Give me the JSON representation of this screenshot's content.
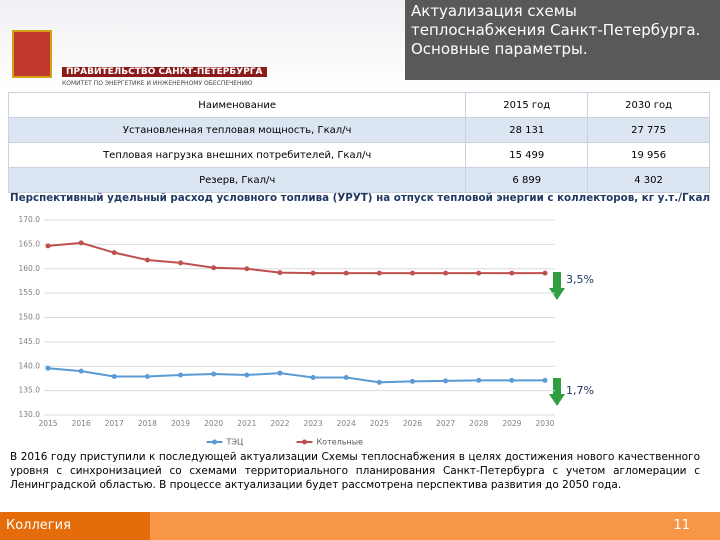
{
  "header": {
    "title": "Актуализация схемы теплоснабжения Санкт-Петербурга. Основные параметры.",
    "organization": "ПРАВИТЕЛЬСТВО САНКТ-ПЕТЕРБУРГА",
    "committee": "КОМИТЕТ ПО ЭНЕРГЕТИКЕ И ИНЖЕНЕРНОМУ ОБЕСПЕЧЕНИЮ"
  },
  "table": {
    "header": [
      "Наименование",
      "2015 год",
      "2030 год"
    ],
    "rows": [
      [
        "Установленная тепловая мощность, Гкал/ч",
        "28 131",
        "27 775"
      ],
      [
        "Тепловая нагрузка внешних потребителей, Гкал/ч",
        "15 499",
        "19 956"
      ],
      [
        "Резерв, Гкал/ч",
        "6 899",
        "4 302"
      ]
    ]
  },
  "chart_data": {
    "type": "line",
    "title": "Перспективный удельный расход условного топлива (УРУТ) на отпуск тепловой энергии с коллекторов, кг у.т./Гкал",
    "categories": [
      "2015",
      "2016",
      "2017",
      "2018",
      "2019",
      "2020",
      "2021",
      "2022",
      "2023",
      "2024",
      "2025",
      "2026",
      "2027",
      "2028",
      "2029",
      "2030"
    ],
    "series": [
      {
        "name": "ТЭЦ",
        "color": "#5b9bd5",
        "values": [
          139.6,
          139.0,
          137.9,
          137.9,
          138.2,
          138.4,
          138.2,
          138.6,
          137.7,
          137.7,
          136.7,
          136.9,
          137.0,
          137.1,
          137.1,
          137.1
        ]
      },
      {
        "name": "Котельные",
        "color": "#c0504d",
        "values": [
          164.7,
          165.3,
          163.3,
          161.8,
          161.2,
          160.2,
          160.0,
          159.2,
          159.1,
          159.1,
          159.1,
          159.1,
          159.1,
          159.1,
          159.1,
          159.1
        ]
      }
    ],
    "ylim": [
      130,
      170
    ],
    "yticks": [
      {
        "value": 130,
        "label": "130.0"
      },
      {
        "value": 135,
        "label": "135.0"
      },
      {
        "value": 140,
        "label": "140.0"
      },
      {
        "value": 145,
        "label": "145.0"
      },
      {
        "value": 150,
        "label": "150.0"
      },
      {
        "value": 155,
        "label": "155.0"
      },
      {
        "value": 160,
        "label": "160.0"
      },
      {
        "value": 165,
        "label": "165.0"
      },
      {
        "value": 170,
        "label": "170.0"
      }
    ],
    "grid": true,
    "legend": "bottom",
    "annotations": [
      "3,5%",
      "1,7%"
    ]
  },
  "body": "В 2016 году приступили к последующей актуализации Схемы теплоснабжения в целях достижения нового качественного уровня с синхронизацией со схемами территориального планирования Санкт-Петербурга с учетом агломерации с Ленинградской областью. В процессе актуализации будет рассмотрена перспектива развития до 2050 года.",
  "footer": {
    "label": "Коллегия",
    "page": "11"
  }
}
